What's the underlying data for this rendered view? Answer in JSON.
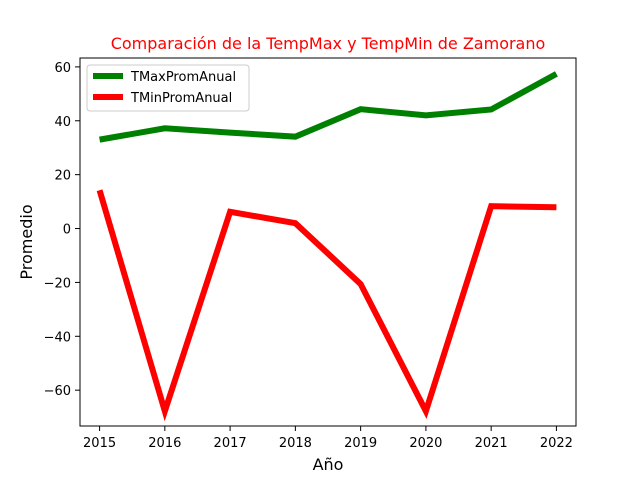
{
  "chart_data": {
    "type": "line",
    "title": "Comparación de la TempMax y TempMin de Zamorano",
    "title_color": "#ff0000",
    "xlabel": "Año",
    "ylabel": "Promedio",
    "x": [
      2015,
      2016,
      2017,
      2018,
      2019,
      2020,
      2021,
      2022
    ],
    "x_ticks": [
      "2015",
      "2016",
      "2017",
      "2018",
      "2019",
      "2020",
      "2021",
      "2022"
    ],
    "y_ticks": [
      60,
      40,
      20,
      0,
      -20,
      -40,
      -60
    ],
    "y_tick_labels": [
      "60",
      "40",
      "20",
      "0",
      "−20",
      "−40",
      "−60"
    ],
    "xlim": [
      2014.7,
      2022.3
    ],
    "ylim": [
      -73.3,
      63.3
    ],
    "grid": false,
    "legend_position": "top-left",
    "series": [
      {
        "name": "TMaxPromAnual",
        "color": "#008000",
        "values": [
          33.0,
          37.2,
          35.6,
          34.1,
          44.3,
          42.0,
          44.2,
          57.4
        ]
      },
      {
        "name": "TMinPromAnual",
        "color": "#ff0000",
        "values": [
          14.2,
          -67.8,
          6.2,
          2.0,
          -20.6,
          -67.8,
          8.3,
          7.9
        ]
      }
    ]
  }
}
